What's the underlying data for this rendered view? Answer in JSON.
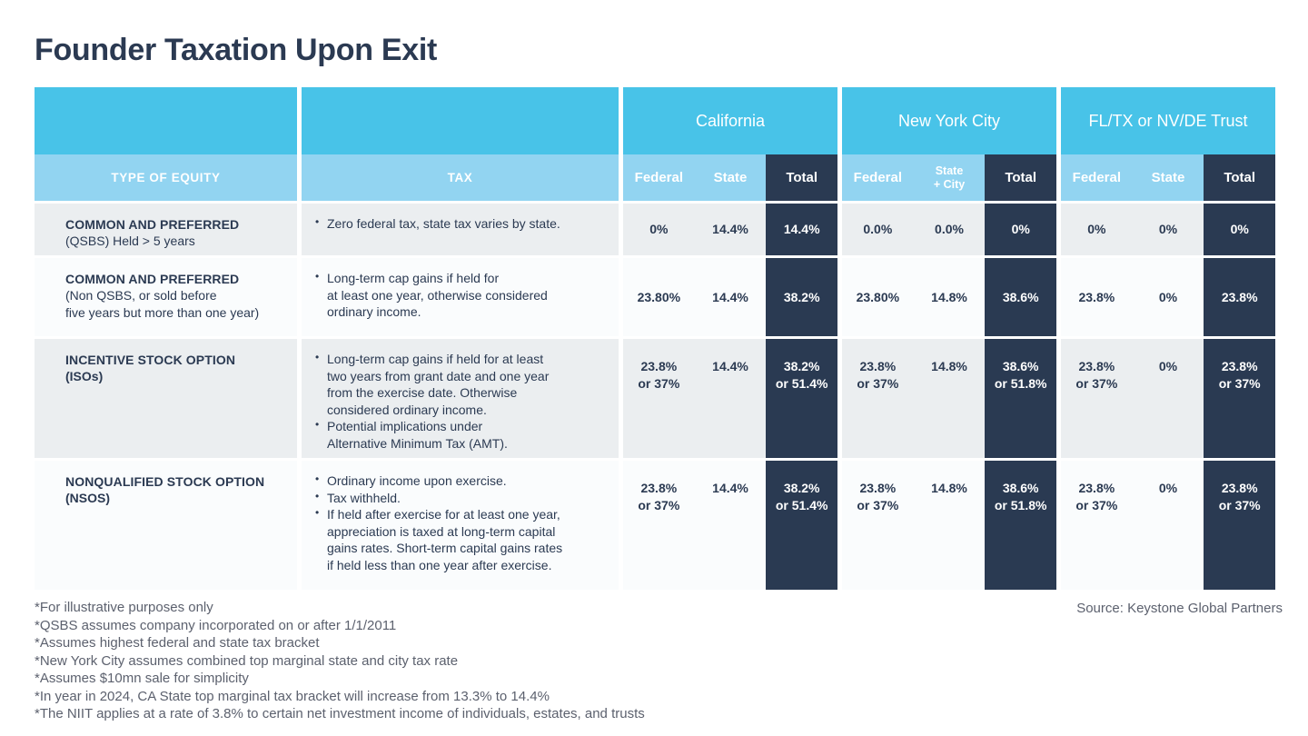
{
  "title": "Founder Taxation Upon Exit",
  "colors": {
    "header_blue": "#48c3e8",
    "header_light_blue": "#92d4f1",
    "navy": "#2a3a52",
    "row_gray": "#ebeef0",
    "row_white": "#fafcfd",
    "footnote_gray": "#5c616e"
  },
  "table": {
    "equity_header": "TYPE OF EQUITY",
    "tax_header": "TAX",
    "regions": [
      {
        "name": "California",
        "federal": "Federal",
        "state": "State",
        "total": "Total"
      },
      {
        "name": "New York City",
        "federal": "Federal",
        "state": "State\n+ City",
        "total": "Total"
      },
      {
        "name": "FL/TX or NV/DE Trust",
        "federal": "Federal",
        "state": "State",
        "total": "Total"
      }
    ],
    "rows": [
      {
        "equity_title": "COMMON AND PREFERRED",
        "equity_sub": "(QSBS) Held > 5 years",
        "tax_bullets": [
          "Zero federal tax, state tax varies by state."
        ],
        "values": {
          "ca": {
            "federal": "0%",
            "state": "14.4%",
            "total": "14.4%"
          },
          "nyc": {
            "federal": "0.0%",
            "state": "0.0%",
            "total": "0%"
          },
          "trust": {
            "federal": "0%",
            "state": "0%",
            "total": "0%"
          }
        }
      },
      {
        "equity_title": "COMMON AND PREFERRED",
        "equity_sub": "(Non QSBS, or sold before\nfive years but more than one year)",
        "tax_bullets": [
          "Long-term cap gains if held for\nat least one year, otherwise considered\nordinary income."
        ],
        "values": {
          "ca": {
            "federal": "23.80%",
            "state": "14.4%",
            "total": "38.2%"
          },
          "nyc": {
            "federal": "23.80%",
            "state": "14.8%",
            "total": "38.6%"
          },
          "trust": {
            "federal": "23.8%",
            "state": "0%",
            "total": "23.8%"
          }
        }
      },
      {
        "equity_title": "INCENTIVE STOCK OPTION",
        "equity_sub": "(ISOs)",
        "tax_bullets": [
          "Long-term cap gains if held for at least\ntwo years from grant date and one year\nfrom the exercise date. Otherwise\nconsidered ordinary income.",
          "Potential implications under\nAlternative Minimum Tax (AMT)."
        ],
        "values": {
          "ca": {
            "federal": "23.8%\nor 37%",
            "state": "14.4%",
            "total": "38.2%\nor 51.4%"
          },
          "nyc": {
            "federal": "23.8%\nor 37%",
            "state": "14.8%",
            "total": "38.6%\nor 51.8%"
          },
          "trust": {
            "federal": "23.8%\nor 37%",
            "state": "0%",
            "total": "23.8%\nor 37%"
          }
        }
      },
      {
        "equity_title": "NONQUALIFIED STOCK OPTION",
        "equity_sub": "(NSOS)",
        "tax_bullets": [
          "Ordinary income upon exercise.",
          "Tax withheld.",
          "If held after exercise for at least one year,\nappreciation is taxed at long-term capital\ngains rates. Short-term capital gains rates\nif held less than one year after exercise."
        ],
        "values": {
          "ca": {
            "federal": "23.8%\nor 37%",
            "state": "14.4%",
            "total": "38.2%\nor 51.4%"
          },
          "nyc": {
            "federal": "23.8%\nor 37%",
            "state": "14.8%",
            "total": "38.6%\nor 51.8%"
          },
          "trust": {
            "federal": "23.8%\nor 37%",
            "state": "0%",
            "total": "23.8%\nor 37%"
          }
        }
      }
    ]
  },
  "footnotes": [
    "*For illustrative purposes only",
    "*QSBS assumes company incorporated on or after 1/1/2011",
    "*Assumes highest federal and state tax bracket",
    "*New York City assumes combined top marginal state and city tax rate",
    "*Assumes $10mn sale for simplicity",
    "*In year in 2024, CA State top marginal tax bracket will increase from 13.3% to 14.4%",
    "*The NIIT applies at a rate of 3.8% to certain net investment income of individuals, estates, and trusts"
  ],
  "source": "Source: Keystone Global Partners",
  "chart_data": {
    "type": "table",
    "title": "Founder Taxation Upon Exit",
    "column_groups": [
      "California",
      "New York City",
      "FL/TX or NV/DE Trust"
    ],
    "columns": [
      "TYPE OF EQUITY",
      "TAX",
      "CA Federal",
      "CA State",
      "CA Total",
      "NYC Federal",
      "NYC State + City",
      "NYC Total",
      "Trust Federal",
      "Trust State",
      "Trust Total"
    ],
    "rows": [
      [
        "COMMON AND PREFERRED (QSBS) Held > 5 years",
        "Zero federal tax, state tax varies by state.",
        "0%",
        "14.4%",
        "14.4%",
        "0.0%",
        "0.0%",
        "0%",
        "0%",
        "0%",
        "0%"
      ],
      [
        "COMMON AND PREFERRED (Non QSBS, or sold before five years but more than one year)",
        "Long-term cap gains if held for at least one year, otherwise considered ordinary income.",
        "23.80%",
        "14.4%",
        "38.2%",
        "23.80%",
        "14.8%",
        "38.6%",
        "23.8%",
        "0%",
        "23.8%"
      ],
      [
        "INCENTIVE STOCK OPTION (ISOs)",
        "Long-term cap gains if held for at least two years from grant date and one year from the exercise date. Otherwise considered ordinary income. Potential implications under Alternative Minimum Tax (AMT).",
        "23.8% or 37%",
        "14.4%",
        "38.2% or 51.4%",
        "23.8% or 37%",
        "14.8%",
        "38.6% or 51.8%",
        "23.8% or 37%",
        "0%",
        "23.8% or 37%"
      ],
      [
        "NONQUALIFIED STOCK OPTION (NSOS)",
        "Ordinary income upon exercise. Tax withheld. If held after exercise for at least one year, appreciation is taxed at long-term capital gains rates. Short-term capital gains rates if held less than one year after exercise.",
        "23.8% or 37%",
        "14.4%",
        "38.2% or 51.4%",
        "23.8% or 37%",
        "14.8%",
        "38.6% or 51.8%",
        "23.8% or 37%",
        "0%",
        "23.8% or 37%"
      ]
    ]
  }
}
